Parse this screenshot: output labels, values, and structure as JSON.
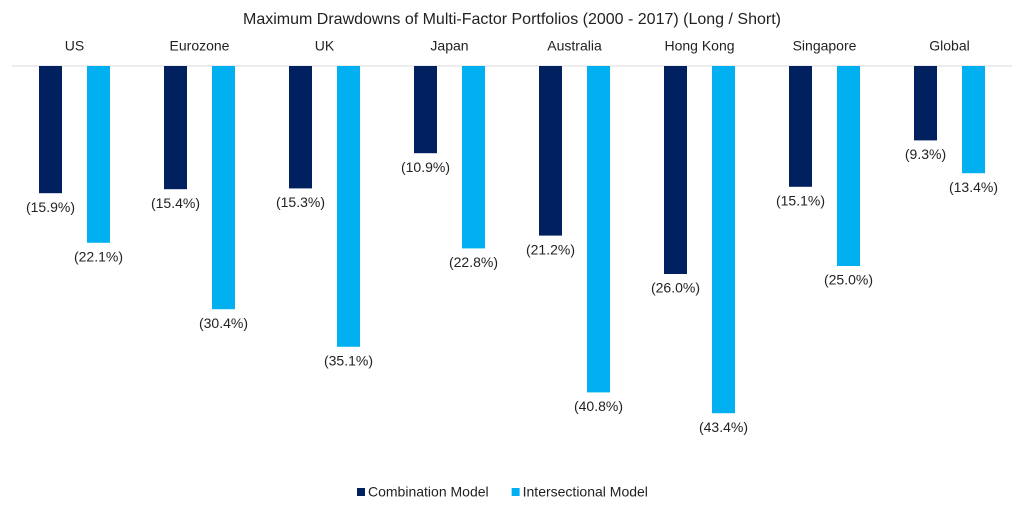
{
  "chart_data": {
    "type": "bar",
    "title": "Maximum Drawdowns of Multi-Factor Portfolios (2000 - 2017) (Long / Short)",
    "categories": [
      "US",
      "Eurozone",
      "UK",
      "Japan",
      "Australia",
      "Hong Kong",
      "Singapore",
      "Global"
    ],
    "series": [
      {
        "name": "Combination Model",
        "color": "#002060",
        "values": [
          -15.9,
          -15.4,
          -15.3,
          -10.9,
          -21.2,
          -26.0,
          -15.1,
          -9.3
        ],
        "value_labels": [
          "(15.9%)",
          "(15.4%)",
          "(15.3%)",
          "(10.9%)",
          "(21.2%)",
          "(26.0%)",
          "(15.1%)",
          "(9.3%)"
        ]
      },
      {
        "name": "Intersectional Model",
        "color": "#00b0f0",
        "values": [
          -22.1,
          -30.4,
          -35.1,
          -22.8,
          -40.8,
          -43.4,
          -25.0,
          -13.4
        ],
        "value_labels": [
          "(22.1%)",
          "(30.4%)",
          "(35.1%)",
          "(22.8%)",
          "(40.8%)",
          "(43.4%)",
          "(25.0%)",
          "(13.4%)"
        ]
      }
    ],
    "ylim": [
      -55,
      0
    ],
    "legend": "bottom"
  }
}
